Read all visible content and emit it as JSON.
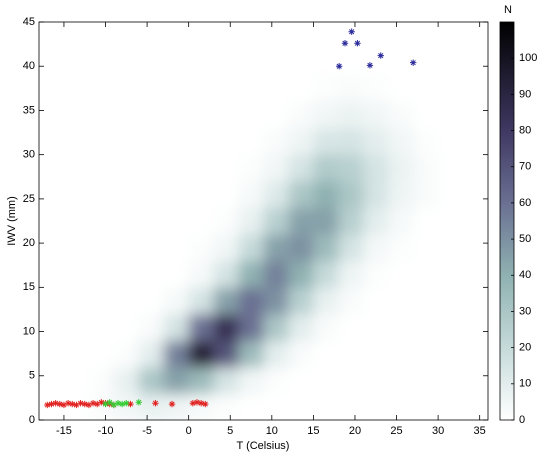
{
  "chart_data": {
    "type": "heatmap",
    "xlabel": "T (Celsius)",
    "ylabel": "IWV (mm)",
    "colorbar_label": "N",
    "xlim": [
      -18,
      36
    ],
    "ylim": [
      0,
      45
    ],
    "xticks": [
      -15,
      -10,
      -5,
      0,
      5,
      10,
      15,
      20,
      25,
      30,
      35
    ],
    "yticks": [
      0,
      5,
      10,
      15,
      20,
      25,
      30,
      35,
      40,
      45
    ],
    "clim": [
      0,
      110
    ],
    "cticks": [
      0,
      10,
      20,
      30,
      40,
      50,
      60,
      70,
      80,
      90,
      100
    ],
    "colormap": [
      {
        "value": 0,
        "color": "#ffffff"
      },
      {
        "value": 20,
        "color": "#c6dada"
      },
      {
        "value": 40,
        "color": "#8fb1b1"
      },
      {
        "value": 60,
        "color": "#6a7092"
      },
      {
        "value": 80,
        "color": "#3f3862"
      },
      {
        "value": 110,
        "color": "#000000"
      }
    ],
    "xbins": [
      -12,
      -9,
      -6,
      -3,
      0,
      3,
      6,
      9,
      12,
      15,
      18,
      21,
      24,
      27,
      30,
      33
    ],
    "ybins": [
      0,
      3,
      6,
      9,
      12,
      15,
      18,
      21,
      24,
      27,
      30,
      33,
      36,
      39
    ],
    "z": [
      [
        2,
        5,
        8,
        6,
        3,
        1,
        0,
        0,
        0,
        0,
        0,
        0,
        0,
        0,
        0
      ],
      [
        1,
        8,
        30,
        45,
        35,
        15,
        5,
        1,
        0,
        0,
        0,
        0,
        0,
        0,
        0
      ],
      [
        0,
        1,
        10,
        55,
        95,
        70,
        35,
        10,
        2,
        0,
        0,
        0,
        0,
        0,
        0
      ],
      [
        0,
        0,
        2,
        15,
        60,
        85,
        60,
        30,
        10,
        2,
        0,
        0,
        0,
        0,
        0
      ],
      [
        0,
        0,
        0,
        3,
        15,
        45,
        60,
        50,
        25,
        8,
        2,
        0,
        0,
        0,
        0
      ],
      [
        0,
        0,
        0,
        0,
        3,
        15,
        40,
        55,
        40,
        20,
        6,
        1,
        0,
        0,
        0
      ],
      [
        0,
        0,
        0,
        0,
        1,
        5,
        20,
        45,
        50,
        35,
        15,
        4,
        1,
        0,
        0
      ],
      [
        0,
        0,
        0,
        0,
        0,
        1,
        8,
        25,
        45,
        45,
        25,
        10,
        3,
        0,
        0
      ],
      [
        0,
        0,
        0,
        0,
        0,
        0,
        3,
        12,
        30,
        40,
        30,
        15,
        6,
        2,
        0
      ],
      [
        0,
        0,
        0,
        0,
        0,
        0,
        1,
        5,
        15,
        28,
        25,
        15,
        7,
        2,
        0
      ],
      [
        0,
        0,
        0,
        0,
        0,
        0,
        0,
        2,
        6,
        14,
        15,
        10,
        5,
        1,
        0
      ],
      [
        0,
        0,
        0,
        0,
        0,
        0,
        0,
        0,
        2,
        5,
        7,
        5,
        2,
        0,
        0
      ],
      [
        0,
        0,
        0,
        0,
        0,
        0,
        0,
        0,
        0,
        1,
        2,
        1,
        0,
        0,
        0
      ]
    ],
    "series": [
      {
        "color": "#e0211f",
        "x": [
          -17,
          -16.5,
          -16,
          -15.5,
          -15,
          -14.5,
          -14,
          -13.5,
          -13,
          -12.5,
          -12,
          -11.5,
          -11,
          -10.5,
          -10,
          -9.5,
          -9,
          -7,
          -4,
          -2,
          0.5,
          1,
          1.5,
          2
        ],
        "y": [
          1.7,
          1.8,
          1.9,
          1.8,
          1.7,
          1.9,
          1.8,
          1.7,
          1.9,
          1.8,
          1.7,
          1.9,
          1.8,
          2.0,
          1.9,
          1.8,
          1.7,
          1.8,
          1.9,
          1.8,
          1.9,
          2.0,
          1.9,
          1.8
        ]
      },
      {
        "color": "#33cc33",
        "x": [
          -10,
          -9.5,
          -9,
          -8.5,
          -8,
          -7.5,
          -6
        ],
        "y": [
          1.8,
          2.0,
          1.7,
          1.9,
          1.8,
          1.9,
          2.0
        ]
      },
      {
        "color": "#2a2a9a",
        "x": [
          18.1,
          18.8,
          19.6,
          20.3,
          21.8,
          23.1,
          27.0
        ],
        "y": [
          40.0,
          42.6,
          43.9,
          42.6,
          40.1,
          41.2,
          40.4
        ]
      }
    ]
  }
}
